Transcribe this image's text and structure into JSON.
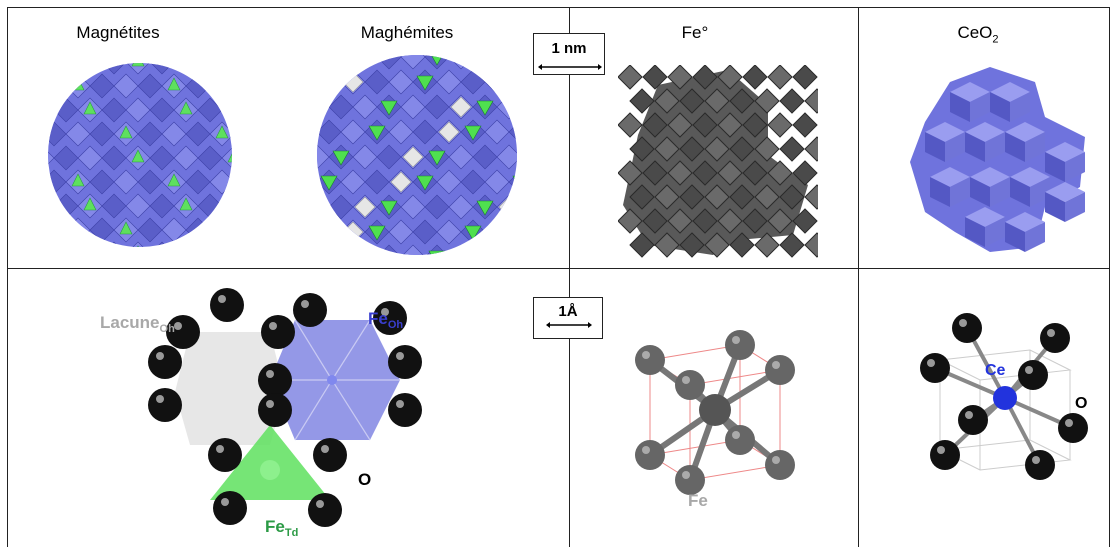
{
  "headers": {
    "magnetites": "Magnétites",
    "maghemites": "Maghémites",
    "fe0": "Fe°",
    "ceo2_main": "CeO",
    "ceo2_sub": "2"
  },
  "scale_bars": {
    "top": "1 nm",
    "bottom": "1Å"
  },
  "spinel_labels": {
    "lacune_main": "Lacune",
    "lacune_sub": "Oh",
    "feoh_main": "Fe",
    "feoh_sub": "Oh",
    "fetd_main": "Fe",
    "fetd_sub": "Td",
    "oxygen": "O"
  },
  "fe_cell_label": "Fe",
  "ceo2_labels": {
    "ce": "Ce",
    "oxygen": "O"
  },
  "colors": {
    "octahedra_blue": "#6f73dd",
    "tetrahedra_green": "#5ee05e",
    "vacancy_grey": "#e6e6e6",
    "iron_dark": "#555555",
    "oxygen_black": "#111111",
    "label_grey": "#a8a8a8",
    "label_blue": "#3a3fcf",
    "label_green": "#2b9a45",
    "ce_blue": "#2233dd"
  }
}
